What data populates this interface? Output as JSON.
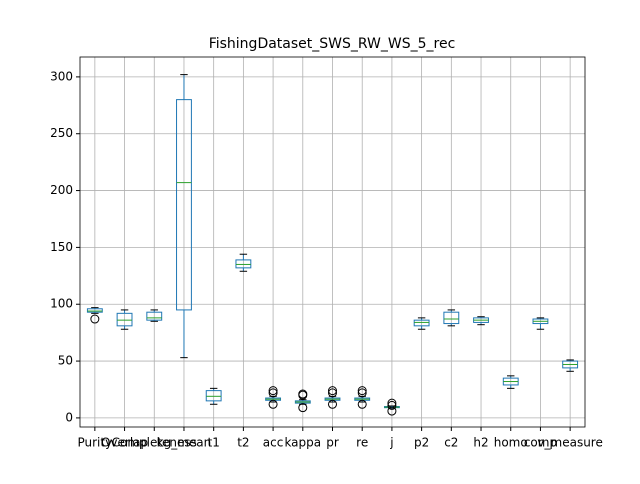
{
  "chart_data": {
    "type": "box",
    "title": "FishingDataset_SWS_RW_WS_5_rec",
    "categories": [
      "Purity",
      "Overlap",
      "Completeness",
      "kg_mean",
      "t1",
      "t2",
      "acc",
      "kappa",
      "pr",
      "re",
      "j",
      "p2",
      "c2",
      "h2",
      "homo",
      "comp",
      "v_measure"
    ],
    "stats": [
      {
        "whislo": 92,
        "q1": 93,
        "med": 94,
        "q3": 96,
        "whishi": 97,
        "fliers": [
          87
        ]
      },
      {
        "whislo": 78,
        "q1": 81,
        "med": 86,
        "q3": 92,
        "whishi": 95,
        "fliers": []
      },
      {
        "whislo": 85,
        "q1": 86,
        "med": 88,
        "q3": 93,
        "whishi": 95,
        "fliers": []
      },
      {
        "whislo": 53,
        "q1": 95,
        "med": 207,
        "q3": 280,
        "whishi": 302,
        "fliers": []
      },
      {
        "whislo": 12,
        "q1": 15,
        "med": 19,
        "q3": 24,
        "whishi": 26,
        "fliers": []
      },
      {
        "whislo": 129,
        "q1": 132,
        "med": 135,
        "q3": 139,
        "whishi": 144,
        "fliers": []
      },
      {
        "whislo": 14,
        "q1": 15.5,
        "med": 16.5,
        "q3": 17.5,
        "whishi": 19,
        "fliers": [
          12,
          22,
          24
        ]
      },
      {
        "whislo": 12,
        "q1": 13,
        "med": 14,
        "q3": 15,
        "whishi": 16,
        "fliers": [
          9,
          20,
          21
        ]
      },
      {
        "whislo": 14,
        "q1": 15.5,
        "med": 16.5,
        "q3": 17.5,
        "whishi": 19,
        "fliers": [
          12,
          22,
          24
        ]
      },
      {
        "whislo": 14,
        "q1": 15.5,
        "med": 16.5,
        "q3": 17.5,
        "whishi": 19,
        "fliers": [
          12,
          22,
          24
        ]
      },
      {
        "whislo": 8.5,
        "q1": 9,
        "med": 9.5,
        "q3": 10,
        "whishi": 10.5,
        "fliers": [
          6,
          11,
          13
        ]
      },
      {
        "whislo": 78,
        "q1": 81,
        "med": 84,
        "q3": 86,
        "whishi": 88,
        "fliers": []
      },
      {
        "whislo": 81,
        "q1": 83,
        "med": 87,
        "q3": 93,
        "whishi": 95,
        "fliers": []
      },
      {
        "whislo": 82,
        "q1": 84,
        "med": 86,
        "q3": 88,
        "whishi": 89,
        "fliers": []
      },
      {
        "whislo": 26,
        "q1": 29,
        "med": 32,
        "q3": 35,
        "whishi": 37,
        "fliers": []
      },
      {
        "whislo": 78,
        "q1": 83,
        "med": 85,
        "q3": 87,
        "whishi": 88,
        "fliers": []
      },
      {
        "whislo": 41,
        "q1": 44,
        "med": 47,
        "q3": 50,
        "whishi": 51,
        "fliers": []
      }
    ],
    "box_color": "#1f77b4",
    "median_color": "#2ca02c",
    "ylim": [
      -8,
      317.5
    ],
    "yticks": [
      0,
      50,
      100,
      150,
      200,
      250,
      300
    ],
    "grid": true
  }
}
